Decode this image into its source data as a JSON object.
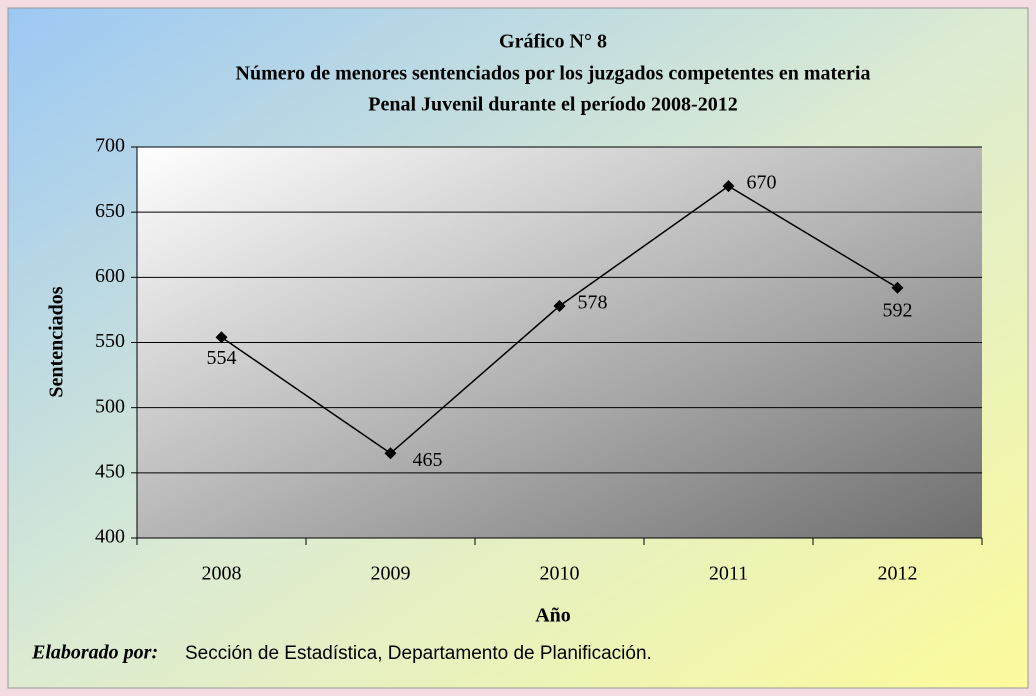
{
  "chart_data": {
    "type": "line",
    "title": "Gráfico N° 8",
    "subtitle": [
      "Número de menores sentenciados por los juzgados competentes en materia",
      "Penal Juvenil durante el período 2008-2012"
    ],
    "x_label": "Año",
    "y_label": "Sentenciados",
    "categories": [
      "2008",
      "2009",
      "2010",
      "2011",
      "2012"
    ],
    "values": [
      554,
      465,
      578,
      670,
      592
    ],
    "color": "#000000",
    "ylim": [
      400,
      700
    ],
    "yticks": [
      400,
      450,
      500,
      550,
      600,
      650,
      700
    ],
    "grid": true,
    "source_label": "Elaborado por:",
    "source": "Sección de Estadística, Departamento de Planificación."
  }
}
